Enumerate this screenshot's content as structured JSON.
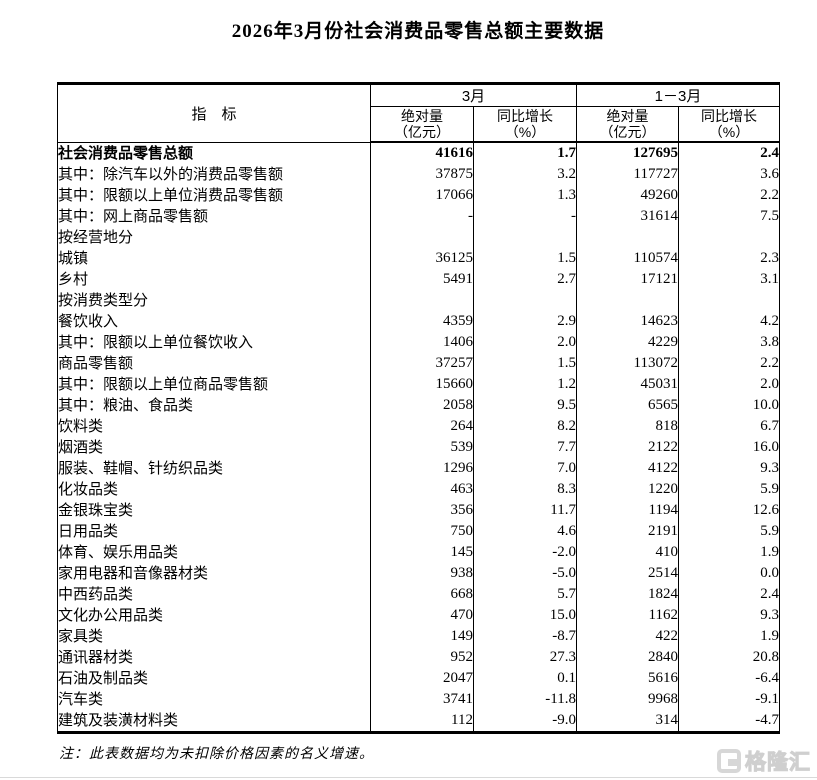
{
  "page": {
    "title": "2026年3月份社会消费品零售总额主要数据",
    "note": "注：此表数据均为未扣除价格因素的名义增速。",
    "watermark_text": "格隆汇"
  },
  "table": {
    "indicator_header": "指　标",
    "groups": [
      {
        "label": "3月",
        "cols": [
          {
            "l1": "绝对量",
            "l2": "（亿元）"
          },
          {
            "l1": "同比增长",
            "l2": "（%）"
          }
        ]
      },
      {
        "label": "1－3月",
        "cols": [
          {
            "l1": "绝对量",
            "l2": "（亿元）"
          },
          {
            "l1": "同比增长",
            "l2": "（%）"
          }
        ]
      }
    ],
    "rows": [
      {
        "label": "社会消费品零售总额",
        "indent": 0,
        "bold": true,
        "values": [
          "41616",
          "1.7",
          "127695",
          "2.4"
        ]
      },
      {
        "label": "其中：除汽车以外的消费品零售额",
        "indent": 1,
        "bold": false,
        "values": [
          "37875",
          "3.2",
          "117727",
          "3.6"
        ]
      },
      {
        "label": "其中：限额以上单位消费品零售额",
        "indent": 1,
        "bold": false,
        "values": [
          "17066",
          "1.3",
          "49260",
          "2.2"
        ]
      },
      {
        "label": "其中：网上商品零售额",
        "indent": 1,
        "bold": false,
        "values": [
          "-",
          "-",
          "31614",
          "7.5"
        ]
      },
      {
        "label": "按经营地分",
        "indent": 0,
        "bold": false,
        "values": [
          "",
          "",
          "",
          ""
        ]
      },
      {
        "label": "城镇",
        "indent": 1,
        "bold": false,
        "values": [
          "36125",
          "1.5",
          "110574",
          "2.3"
        ]
      },
      {
        "label": "乡村",
        "indent": 1,
        "bold": false,
        "values": [
          "5491",
          "2.7",
          "17121",
          "3.1"
        ]
      },
      {
        "label": "按消费类型分",
        "indent": 0,
        "bold": false,
        "values": [
          "",
          "",
          "",
          ""
        ]
      },
      {
        "label": "餐饮收入",
        "indent": 1,
        "bold": false,
        "values": [
          "4359",
          "2.9",
          "14623",
          "4.2"
        ]
      },
      {
        "label": "其中：限额以上单位餐饮收入",
        "indent": 2,
        "bold": false,
        "values": [
          "1406",
          "2.0",
          "4229",
          "3.8"
        ]
      },
      {
        "label": "商品零售额",
        "indent": 1,
        "bold": false,
        "values": [
          "37257",
          "1.5",
          "113072",
          "2.2"
        ]
      },
      {
        "label": "其中：限额以上单位商品零售额",
        "indent": 2,
        "bold": false,
        "values": [
          "15660",
          "1.2",
          "45031",
          "2.0"
        ]
      },
      {
        "label": "其中：粮油、食品类",
        "indent": 3,
        "bold": false,
        "values": [
          "2058",
          "9.5",
          "6565",
          "10.0"
        ]
      },
      {
        "label": "饮料类",
        "indent": 4,
        "bold": false,
        "values": [
          "264",
          "8.2",
          "818",
          "6.7"
        ]
      },
      {
        "label": "烟酒类",
        "indent": 4,
        "bold": false,
        "values": [
          "539",
          "7.7",
          "2122",
          "16.0"
        ]
      },
      {
        "label": "服装、鞋帽、针纺织品类",
        "indent": 4,
        "bold": false,
        "values": [
          "1296",
          "7.0",
          "4122",
          "9.3"
        ]
      },
      {
        "label": "化妆品类",
        "indent": 4,
        "bold": false,
        "values": [
          "463",
          "8.3",
          "1220",
          "5.9"
        ]
      },
      {
        "label": "金银珠宝类",
        "indent": 4,
        "bold": false,
        "values": [
          "356",
          "11.7",
          "1194",
          "12.6"
        ]
      },
      {
        "label": "日用品类",
        "indent": 4,
        "bold": false,
        "values": [
          "750",
          "4.6",
          "2191",
          "5.9"
        ]
      },
      {
        "label": "体育、娱乐用品类",
        "indent": 4,
        "bold": false,
        "values": [
          "145",
          "-2.0",
          "410",
          "1.9"
        ]
      },
      {
        "label": "家用电器和音像器材类",
        "indent": 4,
        "bold": false,
        "values": [
          "938",
          "-5.0",
          "2514",
          "0.0"
        ]
      },
      {
        "label": "中西药品类",
        "indent": 4,
        "bold": false,
        "values": [
          "668",
          "5.7",
          "1824",
          "2.4"
        ]
      },
      {
        "label": "文化办公用品类",
        "indent": 4,
        "bold": false,
        "values": [
          "470",
          "15.0",
          "1162",
          "9.3"
        ]
      },
      {
        "label": "家具类",
        "indent": 4,
        "bold": false,
        "values": [
          "149",
          "-8.7",
          "422",
          "1.9"
        ]
      },
      {
        "label": "通讯器材类",
        "indent": 4,
        "bold": false,
        "values": [
          "952",
          "27.3",
          "2840",
          "20.8"
        ]
      },
      {
        "label": "石油及制品类",
        "indent": 4,
        "bold": false,
        "values": [
          "2047",
          "0.1",
          "5616",
          "-6.4"
        ]
      },
      {
        "label": "汽车类",
        "indent": 4,
        "bold": false,
        "values": [
          "3741",
          "-11.8",
          "9968",
          "-9.1"
        ]
      },
      {
        "label": "建筑及装潢材料类",
        "indent": 4,
        "bold": false,
        "values": [
          "112",
          "-9.0",
          "314",
          "-4.7"
        ]
      }
    ]
  }
}
